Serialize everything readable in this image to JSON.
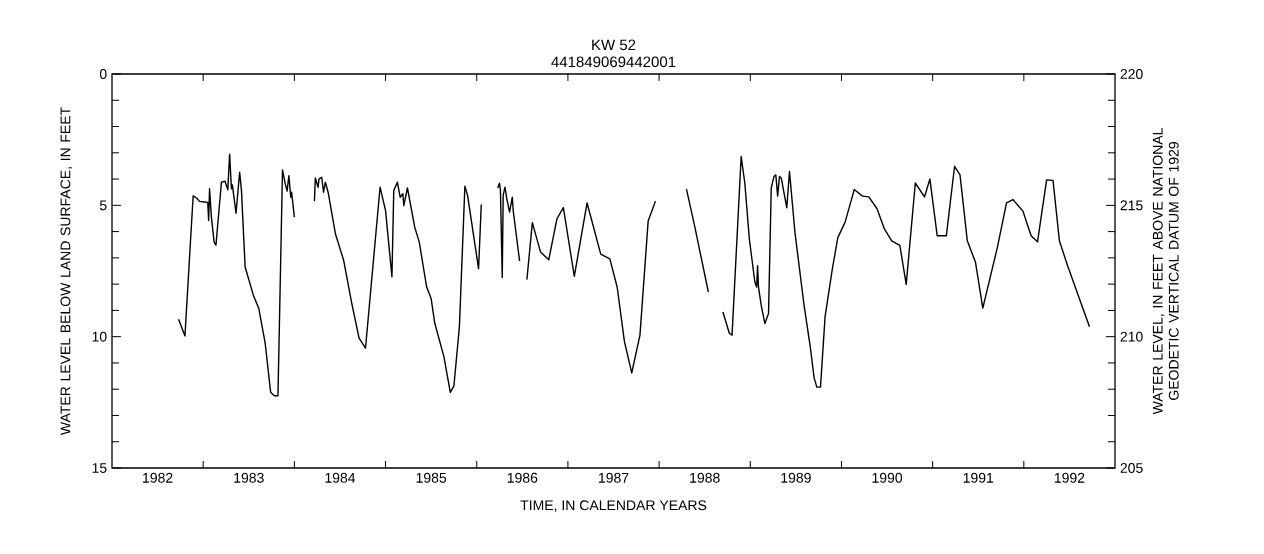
{
  "chart_data": {
    "type": "line",
    "title": "KW 52",
    "subtitle": "441849069442001",
    "xlabel": "TIME, IN CALENDAR YEARS",
    "ylabel": "WATER LEVEL BELOW LAND SURFACE, IN FEET",
    "y2label": "WATER LEVEL, IN FEET ABOVE NATIONAL GEODETIC VERTICAL DATUM OF 1929",
    "xlim": [
      1982,
      1993
    ],
    "xticks": [
      {
        "value": 1982.5,
        "label": "1982"
      },
      {
        "value": 1983.5,
        "label": "1983"
      },
      {
        "value": 1984.5,
        "label": "1984"
      },
      {
        "value": 1985.5,
        "label": "1985"
      },
      {
        "value": 1986.5,
        "label": "1986"
      },
      {
        "value": 1987.5,
        "label": "1987"
      },
      {
        "value": 1988.5,
        "label": "1988"
      },
      {
        "value": 1989.5,
        "label": "1989"
      },
      {
        "value": 1990.5,
        "label": "1990"
      },
      {
        "value": 1991.5,
        "label": "1991"
      },
      {
        "value": 1992.5,
        "label": "1992"
      },
      {
        "value": 1983,
        "label": null
      },
      {
        "value": 1984,
        "label": null
      },
      {
        "value": 1985,
        "label": null
      },
      {
        "value": 1986,
        "label": null
      },
      {
        "value": 1987,
        "label": null
      },
      {
        "value": 1988,
        "label": null
      },
      {
        "value": 1989,
        "label": null
      },
      {
        "value": 1990,
        "label": null
      },
      {
        "value": 1991,
        "label": null
      },
      {
        "value": 1992,
        "label": null
      }
    ],
    "ylim": [
      15,
      0
    ],
    "yticks": [
      0,
      5,
      10,
      15,
      {
        "value": 1,
        "label": null
      },
      {
        "value": 2,
        "label": null
      },
      {
        "value": 3,
        "label": null
      },
      {
        "value": 4,
        "label": null
      },
      {
        "value": 6,
        "label": null
      },
      {
        "value": 7,
        "label": null
      },
      {
        "value": 8,
        "label": null
      },
      {
        "value": 9,
        "label": null
      },
      {
        "value": 11,
        "label": null
      },
      {
        "value": 12,
        "label": null
      },
      {
        "value": 13,
        "label": null
      },
      {
        "value": 14,
        "label": null
      }
    ],
    "y2lim": [
      205,
      220
    ],
    "y2ticks": [
      205,
      210,
      215,
      220
    ],
    "marker": "none",
    "line_style": "solid",
    "x": [
      1982.73,
      1982.8,
      1982.89,
      1982.93,
      1982.96,
      1983.05,
      1983.06,
      1983.07,
      1983.09,
      1983.12,
      1983.14,
      1983.2,
      1983.24,
      1983.27,
      1983.29,
      1983.31,
      1983.32,
      1983.36,
      1983.4,
      1983.42,
      1983.46,
      1983.55,
      1983.61,
      1983.68,
      1983.74,
      1983.78,
      1983.82,
      1983.87,
      1983.9,
      1983.92,
      1983.94,
      1983.96,
      1983.97,
      1984.0,
      1984.1,
      1984.22,
      1984.23,
      1984.26,
      1984.27,
      1984.3,
      1984.32,
      1984.34,
      1984.37,
      1984.45,
      1984.54,
      1984.63,
      1984.71,
      1984.78,
      1984.94,
      1985.0,
      1985.07,
      1985.09,
      1985.13,
      1985.16,
      1985.19,
      1985.2,
      1985.24,
      1985.32,
      1985.37,
      1985.45,
      1985.5,
      1985.54,
      1985.64,
      1985.71,
      1985.75,
      1985.81,
      1985.87,
      1985.9,
      1986.02,
      1986.05,
      1986.14,
      1986.23,
      1986.25,
      1986.26,
      1986.28,
      1986.29,
      1986.31,
      1986.33,
      1986.36,
      1986.39,
      1986.4,
      1986.47,
      1986.51,
      1986.55,
      1986.61,
      1986.7,
      1986.79,
      1986.88,
      1986.95,
      1987.07,
      1987.21,
      1987.36,
      1987.46,
      1987.54,
      1987.62,
      1987.7,
      1987.79,
      1987.88,
      1987.96,
      1988.13,
      1988.3,
      1988.39,
      1988.54,
      1988.62,
      1988.7,
      1988.77,
      1988.8,
      1988.9,
      1988.94,
      1988.99,
      1989.05,
      1989.07,
      1989.08,
      1989.09,
      1989.12,
      1989.16,
      1989.2,
      1989.23,
      1989.26,
      1989.28,
      1989.3,
      1989.32,
      1989.34,
      1989.4,
      1989.43,
      1989.49,
      1989.59,
      1989.66,
      1989.7,
      1989.73,
      1989.77,
      1989.82,
      1989.9,
      1989.96,
      1990.04,
      1990.14,
      1990.23,
      1990.3,
      1990.39,
      1990.47,
      1990.55,
      1990.64,
      1990.71,
      1990.81,
      1990.91,
      1990.97,
      1991.05,
      1991.15,
      1991.24,
      1991.3,
      1991.38,
      1991.47,
      1991.55,
      1991.71,
      1991.81,
      1991.88,
      1991.99,
      1992.08,
      1992.15,
      1992.25,
      1992.32,
      1992.39,
      1992.48,
      1992.72
    ],
    "series": [
      {
        "color": "#000000",
        "values": [
          9.34,
          9.97,
          4.64,
          4.73,
          4.85,
          4.89,
          5.58,
          4.37,
          5.45,
          6.4,
          6.52,
          4.12,
          4.08,
          4.41,
          3.05,
          4.37,
          4.22,
          5.3,
          3.74,
          4.44,
          7.35,
          8.42,
          8.93,
          10.25,
          12.12,
          12.25,
          12.25,
          3.65,
          4.18,
          4.46,
          3.87,
          4.69,
          4.5,
          5.45,
          null,
          4.84,
          3.96,
          4.31,
          4.0,
          3.93,
          4.5,
          4.12,
          4.5,
          6.08,
          7.09,
          8.74,
          10.06,
          10.44,
          4.31,
          5.2,
          7.72,
          4.44,
          4.12,
          4.69,
          4.56,
          5.01,
          4.34,
          5.83,
          6.4,
          8.1,
          8.55,
          9.49,
          10.76,
          12.12,
          11.87,
          9.62,
          4.27,
          4.63,
          7.41,
          4.97,
          null,
          4.34,
          4.16,
          4.44,
          7.75,
          4.61,
          4.31,
          4.75,
          5.26,
          4.69,
          5.2,
          7.12,
          null,
          7.83,
          5.66,
          6.78,
          7.07,
          5.51,
          5.09,
          7.7,
          4.91,
          6.86,
          7.04,
          8.11,
          10.19,
          11.38,
          9.94,
          5.6,
          4.84,
          null,
          4.38,
          5.79,
          8.3,
          null,
          9.06,
          9.87,
          9.94,
          3.14,
          4.15,
          6.29,
          7.92,
          8.11,
          7.3,
          8.11,
          8.81,
          9.5,
          9.12,
          4.34,
          3.9,
          3.84,
          4.65,
          3.9,
          3.96,
          5.09,
          3.71,
          6.04,
          8.81,
          10.44,
          11.57,
          11.92,
          11.92,
          9.25,
          7.42,
          6.23,
          5.64,
          4.4,
          4.65,
          4.68,
          5.13,
          5.89,
          6.35,
          6.52,
          8.01,
          4.15,
          4.68,
          4.0,
          6.16,
          6.16,
          3.52,
          3.84,
          6.35,
          7.17,
          8.91,
          6.6,
          4.91,
          4.78,
          5.22,
          6.16,
          6.39,
          4.03,
          4.05,
          6.35,
          7.3,
          9.62
        ]
      }
    ]
  }
}
